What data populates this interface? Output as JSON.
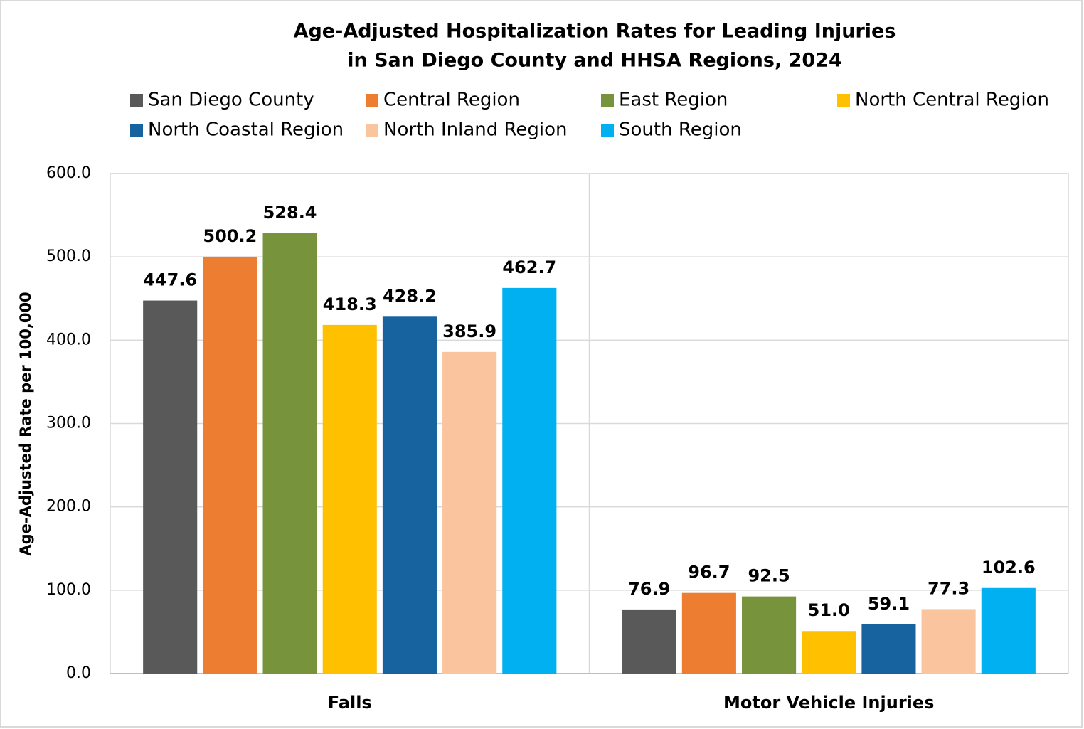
{
  "chart_data": {
    "type": "bar",
    "title_lines": [
      "Age-Adjusted Hospitalization Rates for Leading Injuries",
      "in San Diego County and HHSA Regions, 2024"
    ],
    "y_label": "Age-Adjusted Rate per 100,000",
    "categories": [
      "Falls",
      "Motor Vehicle Injuries"
    ],
    "series": [
      {
        "name": "San Diego County",
        "color": "#595959",
        "values": [
          447.6,
          76.9
        ],
        "value_labels": [
          "447.6",
          "76.9"
        ]
      },
      {
        "name": "Central Region",
        "color": "#ed7d31",
        "values": [
          500.2,
          96.7
        ],
        "value_labels": [
          "500.2",
          "96.7"
        ]
      },
      {
        "name": "East Region",
        "color": "#77933c",
        "values": [
          528.4,
          92.5
        ],
        "value_labels": [
          "528.4",
          "92.5"
        ]
      },
      {
        "name": "North Central Region",
        "color": "#ffc000",
        "values": [
          418.3,
          51.0
        ],
        "value_labels": [
          "418.3",
          "51.0"
        ]
      },
      {
        "name": "North Coastal Region",
        "color": "#1763a0",
        "values": [
          428.2,
          59.1
        ],
        "value_labels": [
          "428.2",
          "59.1"
        ]
      },
      {
        "name": "North Inland Region",
        "color": "#fac59e",
        "values": [
          385.9,
          77.3
        ],
        "value_labels": [
          "385.9",
          "77.3"
        ]
      },
      {
        "name": "South Region",
        "color": "#00b0f0",
        "values": [
          462.7,
          102.6
        ],
        "value_labels": [
          "462.7",
          "102.6"
        ]
      }
    ],
    "ylim": [
      0,
      600
    ],
    "yticks": [
      {
        "value": 0,
        "label": "0.0"
      },
      {
        "value": 100,
        "label": "100.0"
      },
      {
        "value": 200,
        "label": "200.0"
      },
      {
        "value": 300,
        "label": "300.0"
      },
      {
        "value": 400,
        "label": "400.0"
      },
      {
        "value": 500,
        "label": "500.0"
      },
      {
        "value": 600,
        "label": "600.0"
      }
    ],
    "grid": true,
    "legend": "top"
  }
}
